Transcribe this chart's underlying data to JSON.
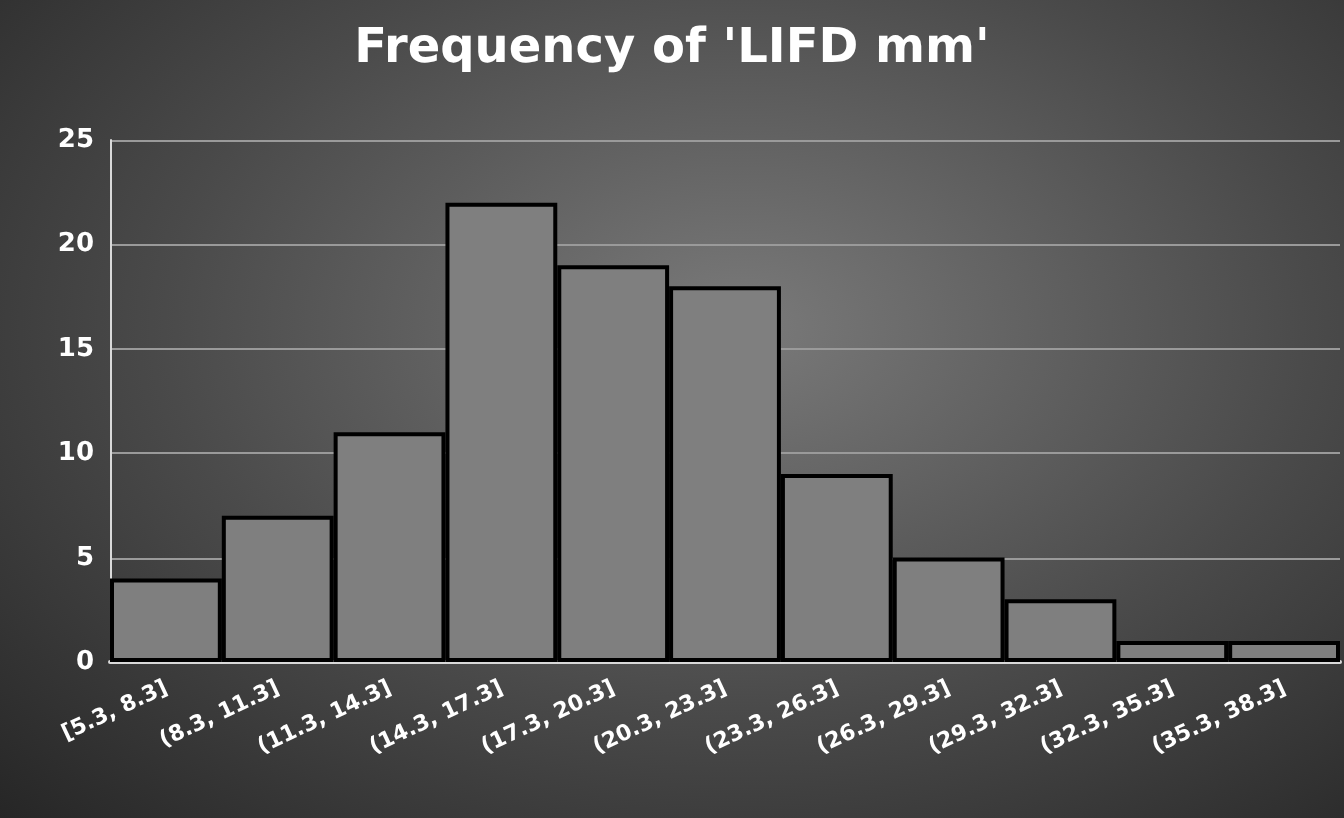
{
  "chart_data": {
    "type": "bar",
    "title": "Frequency of 'LIFD mm'",
    "categories": [
      "[5.3, 8.3]",
      "(8.3, 11.3]",
      "(11.3, 14.3]",
      "(14.3, 17.3]",
      "(17.3, 20.3]",
      "(20.3, 23.3]",
      "(23.3, 26.3]",
      "(26.3, 29.3]",
      "(29.3, 32.3]",
      "(32.3, 35.3]",
      "(35.3, 38.3]"
    ],
    "values": [
      4,
      7,
      11,
      22,
      19,
      18,
      9,
      5,
      3,
      1,
      1
    ],
    "color": "#7f7f7f",
    "ylim": [
      0,
      25
    ],
    "yticks": [
      0,
      5,
      10,
      15,
      20,
      25
    ],
    "grid": "y"
  }
}
